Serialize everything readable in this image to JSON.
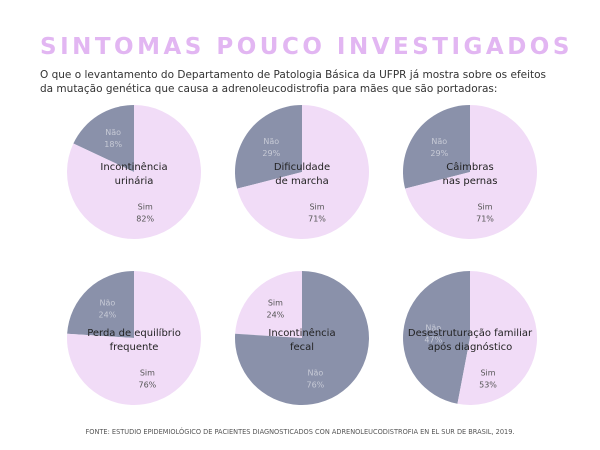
{
  "title": "SINTOMAS POUCO INVESTIGADOS",
  "intro": [
    "O que o levantamento do Departamento de Patologia Básica da UFPR já mostra sobre os efeitos",
    "da mutação genética que causa a adrenoleucodistrofia para mães que são portadoras:"
  ],
  "source": "FONTE: ESTUDIO EPIDEMIOLÓGICO DE PACIENTES DIAGNOSTICADOS CON ADRENOLEUCODISTROFIA EN EL SUR DE BRASIL, 2019.",
  "colors": {
    "sim": "#f1dcf7",
    "nao": "#8a91aa",
    "title": "#e2b6f2"
  },
  "chart_data": [
    {
      "type": "pie",
      "title_lines": [
        "Incontinência",
        "urinária"
      ],
      "slices": [
        {
          "label": "Não",
          "value": 18,
          "display": "18%"
        },
        {
          "label": "Sim",
          "value": 82,
          "display": "82%"
        }
      ]
    },
    {
      "type": "pie",
      "title_lines": [
        "Dificuldade",
        "de marcha"
      ],
      "slices": [
        {
          "label": "Não",
          "value": 29,
          "display": "29%"
        },
        {
          "label": "Sim",
          "value": 71,
          "display": "71%"
        }
      ]
    },
    {
      "type": "pie",
      "title_lines": [
        "Câimbras",
        "nas pernas"
      ],
      "slices": [
        {
          "label": "Não",
          "value": 29,
          "display": "29%"
        },
        {
          "label": "Sim",
          "value": 71,
          "display": "71%"
        }
      ]
    },
    {
      "type": "pie",
      "title_lines": [
        "Perda de equilíbrio",
        "frequente"
      ],
      "slices": [
        {
          "label": "Não",
          "value": 24,
          "display": "24%"
        },
        {
          "label": "Sim",
          "value": 76,
          "display": "76%"
        }
      ]
    },
    {
      "type": "pie",
      "title_lines": [
        "Incontinência",
        "fecal"
      ],
      "slices": [
        {
          "label": "Sim",
          "value": 24,
          "display": "24%"
        },
        {
          "label": "Não",
          "value": 76,
          "display": "76%"
        }
      ]
    },
    {
      "type": "pie",
      "title_lines": [
        "Desestruturação familiar",
        "após diagnóstico"
      ],
      "slices": [
        {
          "label": "Não",
          "value": 47,
          "display": "47%"
        },
        {
          "label": "Sim",
          "value": 53,
          "display": "53%"
        }
      ]
    }
  ]
}
